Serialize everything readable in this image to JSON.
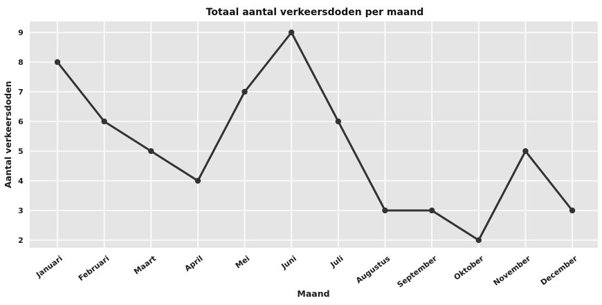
{
  "chart_data": {
    "type": "line",
    "title": "Totaal aantal verkeersdoden per maand",
    "xlabel": "Maand",
    "ylabel": "Aantal verkeersdoden",
    "categories": [
      "Januari",
      "Februari",
      "Maart",
      "April",
      "Mei",
      "Juni",
      "Juli",
      "Augustus",
      "September",
      "Oktober",
      "November",
      "December"
    ],
    "values": [
      8,
      6,
      5,
      4,
      7,
      9,
      6,
      3,
      3,
      2,
      5,
      3
    ],
    "yticks": [
      2,
      3,
      4,
      5,
      6,
      7,
      8,
      9
    ],
    "ylim": [
      1.6,
      9.4
    ],
    "grid": true,
    "legend": "none",
    "x_tick_rotation_deg": -37,
    "colors": {
      "line": "#333333",
      "marker": "#333333",
      "plot_background": "#e5e5e5",
      "gridline": "#ffffff",
      "text": "#1b1b1b"
    }
  }
}
